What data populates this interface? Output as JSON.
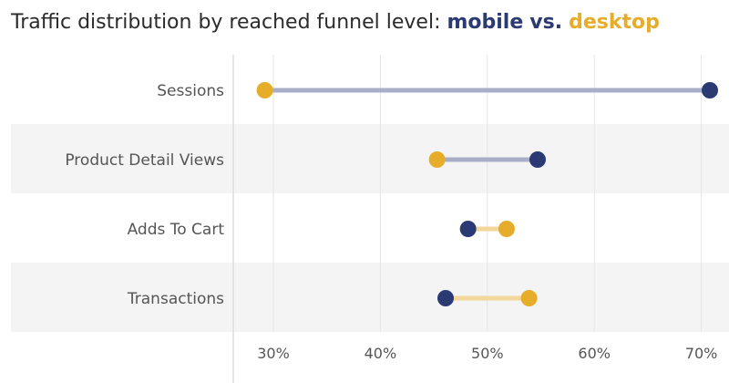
{
  "chart_data": {
    "type": "dumbbell",
    "title_prefix": "Traffic distribution by reached funnel level: ",
    "title_vs": "vs.",
    "series": [
      {
        "name": "mobile",
        "color": "#2b3a72",
        "values": [
          70.8,
          54.7,
          48.2,
          46.1
        ]
      },
      {
        "name": "desktop",
        "color": "#e6ad2b",
        "values": [
          29.2,
          45.3,
          51.8,
          53.9
        ]
      }
    ],
    "categories": [
      "Sessions",
      "Product Detail Views",
      "Adds To Cart",
      "Transactions"
    ],
    "xlim": [
      26,
      73
    ],
    "xticks": [
      30,
      40,
      50,
      60,
      70
    ],
    "tick_labels": [
      "30%",
      "40%",
      "50%",
      "60%",
      "70%"
    ],
    "connector_colors": {
      "mobile_higher": "#a8aec8",
      "desktop_higher": "#f3d69a"
    },
    "grid": true,
    "band_color": "#f4f4f4"
  }
}
